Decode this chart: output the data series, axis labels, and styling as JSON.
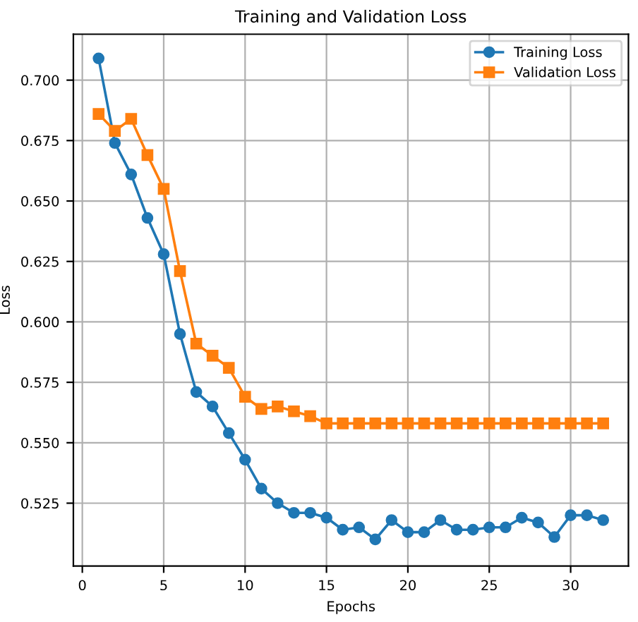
{
  "chart_data": {
    "type": "line",
    "title": "Training and Validation Loss",
    "xlabel": "Epochs",
    "ylabel": "Loss",
    "x": [
      1,
      2,
      3,
      4,
      5,
      6,
      7,
      8,
      9,
      10,
      11,
      12,
      13,
      14,
      15,
      16,
      17,
      18,
      19,
      20,
      21,
      22,
      23,
      24,
      25,
      26,
      27,
      28,
      29,
      30,
      31,
      32
    ],
    "series": [
      {
        "name": "Training Loss",
        "color": "#1f77b4",
        "marker": "circle",
        "values": [
          0.709,
          0.674,
          0.661,
          0.643,
          0.628,
          0.595,
          0.571,
          0.565,
          0.554,
          0.543,
          0.531,
          0.525,
          0.521,
          0.521,
          0.519,
          0.514,
          0.515,
          0.51,
          0.518,
          0.513,
          0.513,
          0.518,
          0.514,
          0.514,
          0.515,
          0.515,
          0.519,
          0.517,
          0.511,
          0.52,
          0.52,
          0.518
        ]
      },
      {
        "name": "Validation Loss",
        "color": "#ff7f0e",
        "marker": "square",
        "values": [
          0.686,
          0.679,
          0.684,
          0.669,
          0.655,
          0.621,
          0.591,
          0.586,
          0.581,
          0.569,
          0.564,
          0.565,
          0.563,
          0.561,
          0.558,
          0.558,
          0.558,
          0.558,
          0.558,
          0.558,
          0.558,
          0.558,
          0.558,
          0.558,
          0.558,
          0.558,
          0.558,
          0.558,
          0.558,
          0.558,
          0.558,
          0.558
        ]
      }
    ],
    "xlim": [
      -0.55,
      33.55
    ],
    "ylim": [
      0.499,
      0.719
    ],
    "xticks": [
      0,
      5,
      10,
      15,
      20,
      25,
      30
    ],
    "yticks": [
      {
        "value": 0.525,
        "label": "0.525"
      },
      {
        "value": 0.55,
        "label": "0.550"
      },
      {
        "value": 0.575,
        "label": "0.575"
      },
      {
        "value": 0.6,
        "label": "0.600"
      },
      {
        "value": 0.625,
        "label": "0.625"
      },
      {
        "value": 0.65,
        "label": "0.650"
      },
      {
        "value": 0.675,
        "label": "0.675"
      },
      {
        "value": 0.7,
        "label": "0.700"
      }
    ],
    "grid": true,
    "legend": "top right",
    "line_style": "solid"
  }
}
